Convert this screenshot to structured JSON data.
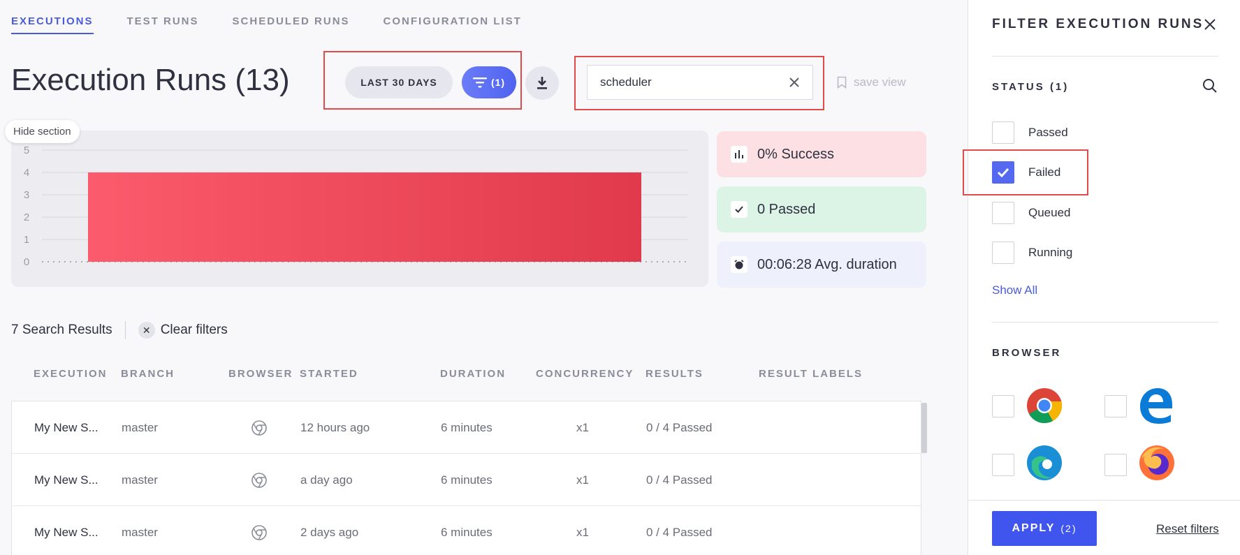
{
  "tabs": [
    {
      "label": "EXECUTIONS",
      "active": true
    },
    {
      "label": "TEST RUNS",
      "active": false
    },
    {
      "label": "SCHEDULED RUNS",
      "active": false
    },
    {
      "label": "CONFIGURATION LIST",
      "active": false
    }
  ],
  "page_title": "Execution Runs (13)",
  "toolbar": {
    "date_range_label": "LAST 30 DAYS",
    "filter_count_label": "(1)",
    "search_value": "scheduler",
    "save_view_label": "save view"
  },
  "hide_section_label": "Hide section",
  "chart_data": {
    "type": "bar",
    "categories": [
      ""
    ],
    "values": [
      4
    ],
    "title": "",
    "xlabel": "",
    "ylabel": "",
    "ylim": [
      0,
      5
    ],
    "yticks": [
      "0",
      "1",
      "2",
      "3",
      "4",
      "5"
    ],
    "grid": true,
    "color": "#e03a4c"
  },
  "stats": {
    "success": "0% Success",
    "passed": "0 Passed",
    "avg_duration": "00:06:28 Avg. duration"
  },
  "results": {
    "count_label": "7 Search Results",
    "clear_filters_label": "Clear filters"
  },
  "table": {
    "headers": [
      "EXECUTION",
      "BRANCH",
      "BROWSER",
      "STARTED",
      "DURATION",
      "CONCURRENCY",
      "RESULTS",
      "RESULT LABELS"
    ],
    "rows": [
      {
        "execution": "My New S...",
        "branch": "master",
        "started": "12 hours ago",
        "duration": "6 minutes",
        "concurrency": "x1",
        "results": "0 / 4 Passed"
      },
      {
        "execution": "My New S...",
        "branch": "master",
        "started": "a day ago",
        "duration": "6 minutes",
        "concurrency": "x1",
        "results": "0 / 4 Passed"
      },
      {
        "execution": "My New S...",
        "branch": "master",
        "started": "2 days ago",
        "duration": "6 minutes",
        "concurrency": "x1",
        "results": "0 / 4 Passed"
      }
    ]
  },
  "filter_panel": {
    "title": "FILTER EXECUTION RUNS",
    "status_label": "STATUS (1)",
    "status_options": [
      {
        "label": "Passed",
        "checked": false
      },
      {
        "label": "Failed",
        "checked": true
      },
      {
        "label": "Queued",
        "checked": false
      },
      {
        "label": "Running",
        "checked": false
      }
    ],
    "show_all_label": "Show All",
    "browser_label": "BROWSER",
    "browsers": [
      "chrome-icon",
      "edge-legacy-icon",
      "edge-icon",
      "firefox-icon"
    ],
    "apply_label": "APPLY",
    "apply_count": "(2)",
    "reset_label": "Reset filters"
  },
  "colors": {
    "accent": "#4f63f0",
    "highlight_box": "#e04a4a",
    "bar": "#e03a4c"
  }
}
